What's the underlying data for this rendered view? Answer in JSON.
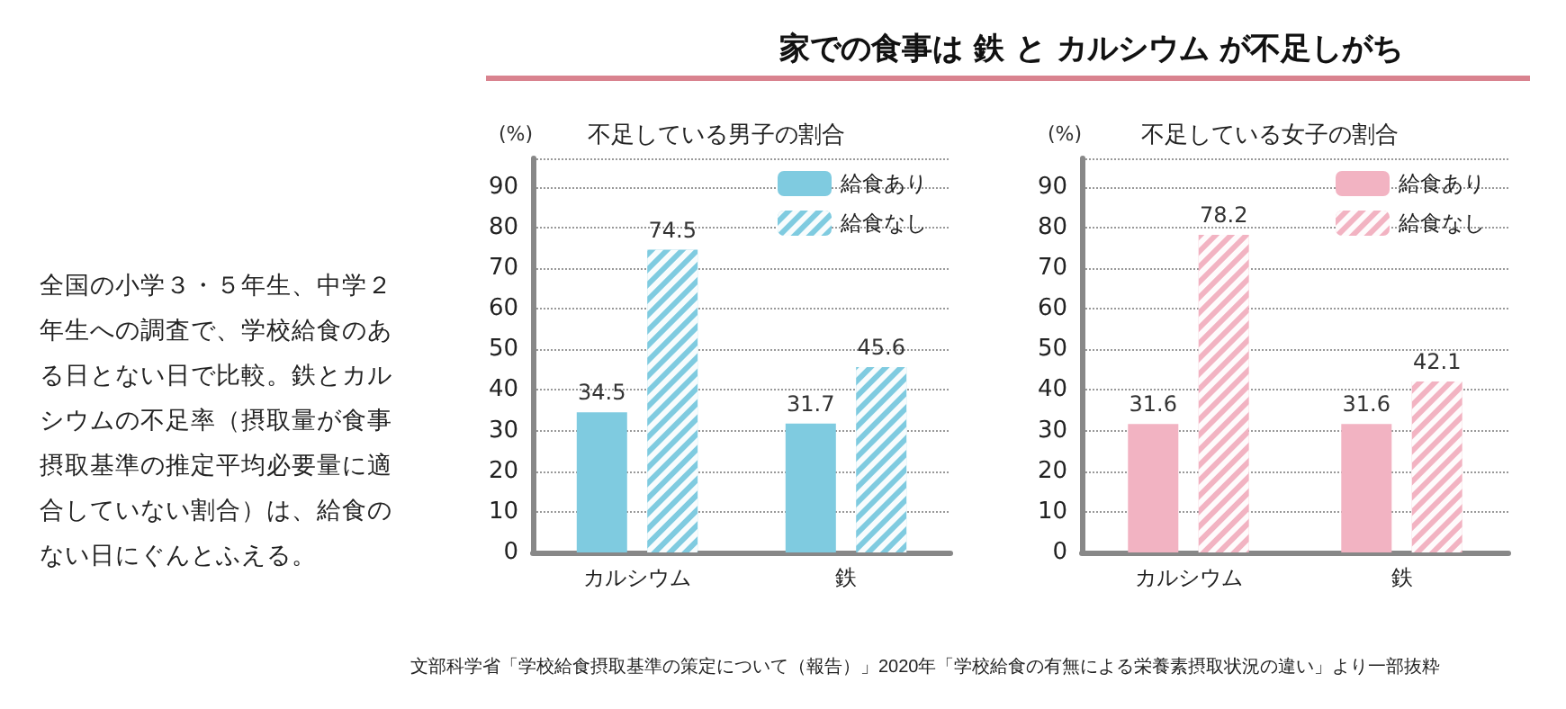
{
  "chart_data": [
    {
      "type": "other",
      "title": "家での食事は 鉄 と カルシウム が不足しがち",
      "annotations": [
        "全国の小学３・５年生、中学２年生への調査で、学校給食のある日とない日で比較。鉄とカルシウムの不足率（摂取量が食事摂取基準の推定平均必要量に適合していない割合）は、給食のない日にぐんとふえる。",
        "文部科学省「学校給食摂取基準の策定について（報告）」2020年「学校給食の有無による栄養素摂取状況の違い」より一部抜粋"
      ]
    },
    {
      "type": "bar",
      "title": "不足している男子の割合",
      "ylabel": "(%)",
      "categories": [
        "カルシウム",
        "鉄"
      ],
      "series": [
        {
          "name": "給食あり",
          "color": "#7fcbe0",
          "values": [
            34.5,
            31.7
          ]
        },
        {
          "name": "給食なし",
          "color": "#7fcbe0",
          "values": [
            74.5,
            45.6
          ]
        }
      ],
      "ylim": [
        0,
        97
      ],
      "yticks": [
        0,
        10,
        20,
        30,
        40,
        50,
        60,
        70,
        80,
        90
      ],
      "grid": "y",
      "legend": "top right",
      "data_labels": true
    },
    {
      "type": "bar",
      "title": "不足している女子の割合",
      "ylabel": "(%)",
      "categories": [
        "カルシウム",
        "鉄"
      ],
      "series": [
        {
          "name": "給食あり",
          "color": "#f2b3c2",
          "values": [
            31.6,
            31.6
          ]
        },
        {
          "name": "給食なし",
          "color": "#f2b3c2",
          "values": [
            78.2,
            42.1
          ]
        }
      ],
      "ylim": [
        0,
        97
      ],
      "yticks": [
        0,
        10,
        20,
        30,
        40,
        50,
        60,
        70,
        80,
        90
      ],
      "grid": "y",
      "legend": "top right",
      "data_labels": true
    }
  ]
}
